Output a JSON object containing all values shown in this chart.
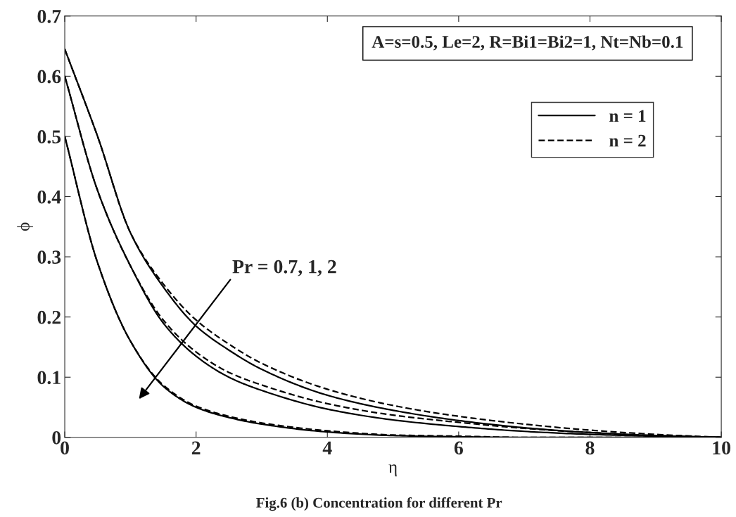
{
  "chart_data": {
    "type": "line",
    "xlabel": "η",
    "ylabel": "ϕ",
    "xlim": [
      0,
      10
    ],
    "ylim": [
      0,
      0.7
    ],
    "xticks": [
      0,
      2,
      4,
      6,
      8,
      10
    ],
    "yticks": [
      0,
      0.1,
      0.2,
      0.3,
      0.4,
      0.5,
      0.6,
      0.7
    ],
    "grid": false,
    "legend": "right",
    "marker": "none",
    "x": [
      0,
      0.5,
      1,
      1.5,
      2,
      2.5,
      3,
      4,
      5,
      6,
      7,
      8,
      9,
      10
    ],
    "series": [
      {
        "name": "n = 1",
        "color": "#000000",
        "line_style": "solid",
        "values": [
          0.645,
          0.5,
          0.34,
          0.25,
          0.185,
          0.145,
          0.113,
          0.07,
          0.045,
          0.028,
          0.016,
          0.008,
          0.003,
          0
        ]
      },
      {
        "name": "n = 2",
        "color": "#000000",
        "line_style": "dashed",
        "values": [
          0.645,
          0.5,
          0.34,
          0.255,
          0.195,
          0.155,
          0.123,
          0.08,
          0.053,
          0.035,
          0.022,
          0.012,
          0.005,
          0
        ]
      },
      {
        "color": "#000000",
        "line_style": "solid",
        "values": [
          0.6,
          0.41,
          0.285,
          0.19,
          0.135,
          0.1,
          0.078,
          0.047,
          0.029,
          0.018,
          0.01,
          0.005,
          0.002,
          0
        ]
      },
      {
        "color": "#000000",
        "line_style": "dashed",
        "values": [
          0.6,
          0.41,
          0.285,
          0.195,
          0.142,
          0.108,
          0.087,
          0.056,
          0.037,
          0.025,
          0.015,
          0.008,
          0.003,
          0
        ]
      },
      {
        "color": "#000000",
        "line_style": "solid",
        "values": [
          0.5,
          0.29,
          0.16,
          0.085,
          0.05,
          0.033,
          0.022,
          0.009,
          0.003,
          0.001,
          0,
          0,
          0,
          0
        ]
      },
      {
        "color": "#000000",
        "line_style": "dashed",
        "values": [
          0.5,
          0.29,
          0.16,
          0.087,
          0.052,
          0.035,
          0.024,
          0.011,
          0.004,
          0.002,
          0,
          0,
          0,
          0
        ]
      }
    ],
    "annotations": [
      "A=s=0.5, Le=2, R=Bi1=Bi2=1, Nt=Nb=0.1",
      "Pr = 0.7, 1, 2",
      "Fig.6 (b) Concentration for different Pr"
    ]
  }
}
